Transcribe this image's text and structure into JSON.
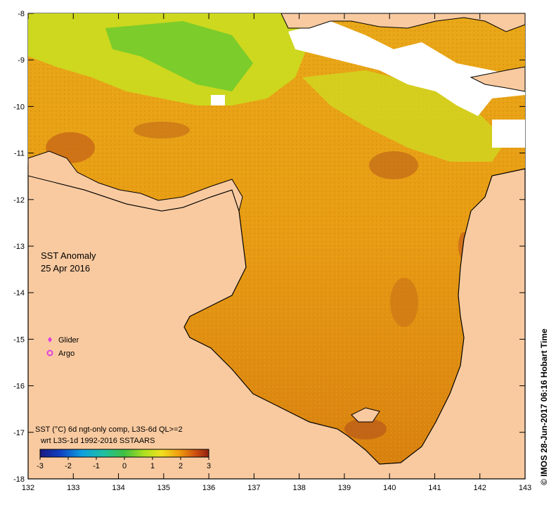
{
  "map": {
    "x_ticks": [
      "132",
      "133",
      "134",
      "135",
      "136",
      "137",
      "138",
      "139",
      "140",
      "141",
      "142",
      "143"
    ],
    "y_ticks": [
      "-8",
      "-9",
      "-10",
      "-11",
      "-12",
      "-13",
      "-14",
      "-15",
      "-16",
      "-17",
      "-18"
    ],
    "title_line1": "SST Anomaly",
    "title_line2": "25 Apr 2016",
    "legend": {
      "glider_label": "Glider",
      "argo_label": "Argo",
      "glider_color": "#e040e0",
      "argo_color": "#e040e0"
    },
    "caption_line1": "SST (°C) 6d ngt-only comp, L3S-6d QL>=2",
    "caption_line2": "wrt L3S-1d 1992-2016 SSTAARS",
    "colorbar": {
      "ticks": [
        "-3",
        "-2",
        "-1",
        "0",
        "1",
        "2",
        "3"
      ],
      "min": -3,
      "max": 3
    },
    "credit": "© IMOS 28-Jun-2017 06:16 Hobart Time",
    "colors": {
      "land": "#f9caa0",
      "anomaly_warm": "#e8a010",
      "anomaly_hot": "#c06010",
      "anomaly_mild": "#f0e020",
      "anomaly_cool": "#40c040"
    }
  }
}
